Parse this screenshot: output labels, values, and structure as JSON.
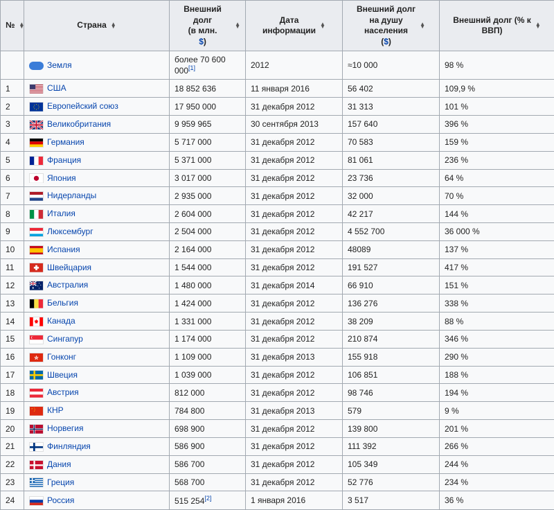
{
  "headers": {
    "num": "№",
    "country": "Страна",
    "debt_line1": "Внешний долг",
    "debt_line2": "(в млн.",
    "debt_line3": ")",
    "date_line1": "Дата",
    "date_line2": "информации",
    "percap_line1": "Внешний долг",
    "percap_line2": "на душу",
    "percap_line3": "населения",
    "percap_line4": "(",
    "percap_line5": ")",
    "gdp_line1": "Внешний долг (% к",
    "gdp_line2": "ВВП)",
    "dollar": "$"
  },
  "earth": {
    "name": "Земля",
    "debt_pre": "более 70 600 000",
    "ref": "[1]",
    "date": "2012",
    "percap": "≈10 000",
    "gdp": "98 %"
  },
  "rows": [
    {
      "n": "1",
      "country": "США",
      "flag": "us",
      "debt": "18 852 636",
      "date": "11 января 2016",
      "percap": "56 402",
      "gdp": "109,9 %"
    },
    {
      "n": "2",
      "country": "Европейский союз",
      "flag": "eu",
      "debt": "17 950 000",
      "date": "31 декабря 2012",
      "percap": "31 313",
      "gdp": "101 %"
    },
    {
      "n": "3",
      "country": "Великобритания",
      "flag": "gb",
      "debt": "9 959 965",
      "date": "30 сентября 2013",
      "percap": "157 640",
      "gdp": "396 %"
    },
    {
      "n": "4",
      "country": "Германия",
      "flag": "de",
      "debt": "5 717 000",
      "date": "31 декабря 2012",
      "percap": "70 583",
      "gdp": "159 %"
    },
    {
      "n": "5",
      "country": "Франция",
      "flag": "fr",
      "debt": "5 371 000",
      "date": "31 декабря 2012",
      "percap": "81 061",
      "gdp": "236 %"
    },
    {
      "n": "6",
      "country": "Япония",
      "flag": "jp",
      "debt": "3 017 000",
      "date": "31 декабря 2012",
      "percap": "23 736",
      "gdp": "64 %"
    },
    {
      "n": "7",
      "country": "Нидерланды",
      "flag": "nl",
      "debt": "2 935 000",
      "date": "31 декабря 2012",
      "percap": "32 000",
      "gdp": "70 %"
    },
    {
      "n": "8",
      "country": "Италия",
      "flag": "it",
      "debt": "2 604 000",
      "date": "31 декабря 2012",
      "percap": "42 217",
      "gdp": "144 %"
    },
    {
      "n": "9",
      "country": "Люксембург",
      "flag": "lu",
      "debt": "2 504 000",
      "date": "31 декабря 2012",
      "percap": "4 552 700",
      "gdp": "36 000 %"
    },
    {
      "n": "10",
      "country": "Испания",
      "flag": "es",
      "debt": "2 164 000",
      "date": "31 декабря 2012",
      "percap": "48089",
      "gdp": "137 %"
    },
    {
      "n": "11",
      "country": "Швейцария",
      "flag": "ch",
      "debt": "1 544 000",
      "date": "31 декабря 2012",
      "percap": "191 527",
      "gdp": "417 %"
    },
    {
      "n": "12",
      "country": "Австралия",
      "flag": "au",
      "debt": "1 480 000",
      "date": "31 декабря 2014",
      "percap": "66 910",
      "gdp": "151 %"
    },
    {
      "n": "13",
      "country": "Бельгия",
      "flag": "be",
      "debt": "1 424 000",
      "date": "31 декабря 2012",
      "percap": "136 276",
      "gdp": "338 %"
    },
    {
      "n": "14",
      "country": "Канада",
      "flag": "ca",
      "debt": "1 331 000",
      "date": "31 декабря 2012",
      "percap": "38 209",
      "gdp": "88 %"
    },
    {
      "n": "15",
      "country": "Сингапур",
      "flag": "sg",
      "debt": "1 174 000",
      "date": "31 декабря 2012",
      "percap": "210 874",
      "gdp": "346 %"
    },
    {
      "n": "16",
      "country": "Гонконг",
      "flag": "hk",
      "debt": "1 109 000",
      "date": "31 декабря 2013",
      "percap": "155 918",
      "gdp": "290 %"
    },
    {
      "n": "17",
      "country": "Швеция",
      "flag": "se",
      "debt": "1 039 000",
      "date": "31 декабря 2012",
      "percap": "106 851",
      "gdp": "188 %"
    },
    {
      "n": "18",
      "country": "Австрия",
      "flag": "at",
      "debt": "812 000",
      "date": "31 декабря 2012",
      "percap": "98 746",
      "gdp": "194 %"
    },
    {
      "n": "19",
      "country": "КНР",
      "flag": "cn",
      "debt": "784 800",
      "date": "31 декабря 2013",
      "percap": "579",
      "gdp": "9 %"
    },
    {
      "n": "20",
      "country": "Норвегия",
      "flag": "no",
      "debt": "698 900",
      "date": "31 декабря 2012",
      "percap": "139 800",
      "gdp": "201 %"
    },
    {
      "n": "21",
      "country": "Финляндия",
      "flag": "fi",
      "debt": "586 900",
      "date": "31 декабря 2012",
      "percap": "111 392",
      "gdp": "266 %"
    },
    {
      "n": "22",
      "country": "Дания",
      "flag": "dk",
      "debt": "586 700",
      "date": "31 декабря 2012",
      "percap": "105 349",
      "gdp": "244 %"
    },
    {
      "n": "23",
      "country": "Греция",
      "flag": "gr",
      "debt": "568 700",
      "date": "31 декабря 2012",
      "percap": "52 776",
      "gdp": "234 %"
    },
    {
      "n": "24",
      "country": "Россия",
      "flag": "ru",
      "debt": "515 254",
      "ref": "[2]",
      "date": "1 января 2016",
      "percap": "3 517",
      "gdp": "36 %"
    }
  ],
  "flagSVG": {
    "us": "<svg viewBox='0 0 21 14'><rect width='21' height='14' fill='#b22234'/><g fill='#fff'><rect y='1.08' width='21' height='1.08'/><rect y='3.23' width='21' height='1.08'/><rect y='5.38' width='21' height='1.08'/><rect y='7.54' width='21' height='1.08'/><rect y='9.69' width='21' height='1.08'/><rect y='11.85' width='21' height='1.08'/></g><rect width='9' height='7.5' fill='#3c3b6e'/></svg>",
    "eu": "<svg viewBox='0 0 21 14'><rect width='21' height='14' fill='#003399'/><g fill='#fc0'><circle cx='10.5' cy='3' r='0.6'/><circle cx='10.5' cy='11' r='0.6'/><circle cx='6.5' cy='7' r='0.6'/><circle cx='14.5' cy='7' r='0.6'/><circle cx='7.5' cy='4.2' r='0.6'/><circle cx='13.5' cy='4.2' r='0.6'/><circle cx='7.5' cy='9.8' r='0.6'/><circle cx='13.5' cy='9.8' r='0.6'/></g></svg>",
    "gb": "<svg viewBox='0 0 21 14'><rect width='21' height='14' fill='#012169'/><path d='M0 0l21 14M21 0L0 14' stroke='#fff' stroke-width='2.8'/><path d='M0 0l21 14M21 0L0 14' stroke='#c8102e' stroke-width='1.2'/><path d='M10.5 0v14M0 7h21' stroke='#fff' stroke-width='4'/><path d='M10.5 0v14M0 7h21' stroke='#c8102e' stroke-width='2.2'/></svg>",
    "de": "<svg viewBox='0 0 21 14'><rect width='21' height='4.67' fill='#000'/><rect y='4.67' width='21' height='4.67' fill='#d00'/><rect y='9.33' width='21' height='4.67' fill='#ffce00'/></svg>",
    "fr": "<svg viewBox='0 0 21 14'><rect width='7' height='14' fill='#002395'/><rect x='7' width='7' height='14' fill='#fff'/><rect x='14' width='7' height='14' fill='#ed2939'/></svg>",
    "jp": "<svg viewBox='0 0 21 14'><rect width='21' height='14' fill='#fff'/><circle cx='10.5' cy='7' r='4' fill='#bc002d'/></svg>",
    "nl": "<svg viewBox='0 0 21 14'><rect width='21' height='4.67' fill='#ae1c28'/><rect y='4.67' width='21' height='4.67' fill='#fff'/><rect y='9.33' width='21' height='4.67' fill='#21468b'/></svg>",
    "it": "<svg viewBox='0 0 21 14'><rect width='7' height='14' fill='#009246'/><rect x='7' width='7' height='14' fill='#fff'/><rect x='14' width='7' height='14' fill='#ce2b37'/></svg>",
    "lu": "<svg viewBox='0 0 21 14'><rect width='21' height='4.67' fill='#ed2939'/><rect y='4.67' width='21' height='4.67' fill='#fff'/><rect y='9.33' width='21' height='4.67' fill='#00a1de'/></svg>",
    "es": "<svg viewBox='0 0 21 14'><rect width='21' height='14' fill='#c60b1e'/><rect y='3.5' width='21' height='7' fill='#ffc400'/></svg>",
    "ch": "<svg viewBox='0 0 21 14'><rect width='21' height='14' fill='#d52b1e'/><rect x='9' y='3' width='3' height='8' fill='#fff'/><rect x='6.5' y='5.5' width='8' height='3' fill='#fff'/></svg>",
    "au": "<svg viewBox='0 0 21 14'><rect width='21' height='14' fill='#012169'/><rect width='10.5' height='7' fill='#012169'/><path d='M0 0l10.5 7M10.5 0L0 7' stroke='#fff' stroke-width='1.4'/><path d='M5.25 0v7M0 3.5h10.5' stroke='#fff' stroke-width='2'/><path d='M5.25 0v7M0 3.5h10.5' stroke='#c8102e' stroke-width='1'/><g fill='#fff'><circle cx='5.2' cy='10.5' r='1.2'/><circle cx='15' cy='3' r='0.6'/><circle cx='17.5' cy='6' r='0.6'/><circle cx='15' cy='11' r='0.6'/><circle cx='13' cy='7.5' r='0.6'/></g></svg>",
    "be": "<svg viewBox='0 0 21 14'><rect width='7' height='14' fill='#000'/><rect x='7' width='7' height='14' fill='#fae042'/><rect x='14' width='7' height='14' fill='#ed2939'/></svg>",
    "ca": "<svg viewBox='0 0 21 14'><rect width='21' height='14' fill='#f00'/><rect x='5.25' width='10.5' height='14' fill='#fff'/><path d='M10.5 3l1 2 2-0.5-1 2 1.5 1-2 0.5 0.3 2-1.8-1-1.8 1 0.3-2-2-0.5 1.5-1-1-2 2 0.5z' fill='#f00'/></svg>",
    "sg": "<svg viewBox='0 0 21 14'><rect width='21' height='7' fill='#ed2939'/><rect y='7' width='21' height='7' fill='#fff'/><circle cx='4.5' cy='3.5' r='2.2' fill='#fff'/><circle cx='5.3' cy='3.5' r='2.2' fill='#ed2939'/></svg>",
    "hk": "<svg viewBox='0 0 21 14'><rect width='21' height='14' fill='#de2910'/><g fill='#fff' transform='translate(10.5 7)'><path d='M0-3.5q1.5 1 0 3.5q-1.5-2.5 0-3.5' transform='rotate(0)'/><path d='M0-3.5q1.5 1 0 3.5q-1.5-2.5 0-3.5' transform='rotate(72)'/><path d='M0-3.5q1.5 1 0 3.5q-1.5-2.5 0-3.5' transform='rotate(144)'/><path d='M0-3.5q1.5 1 0 3.5q-1.5-2.5 0-3.5' transform='rotate(216)'/><path d='M0-3.5q1.5 1 0 3.5q-1.5-2.5 0-3.5' transform='rotate(288)'/></g></svg>",
    "se": "<svg viewBox='0 0 21 14'><rect width='21' height='14' fill='#006aa7'/><rect x='6' width='2.8' height='14' fill='#fecc00'/><rect y='5.6' width='21' height='2.8' fill='#fecc00'/></svg>",
    "at": "<svg viewBox='0 0 21 14'><rect width='21' height='4.67' fill='#ed2939'/><rect y='4.67' width='21' height='4.67' fill='#fff'/><rect y='9.33' width='21' height='4.67' fill='#ed2939'/></svg>",
    "cn": "<svg viewBox='0 0 21 14'><rect width='21' height='14' fill='#de2910'/><g fill='#ffde00'><polygon points='3.5,2 4.2,4 2.4,2.8 4.6,2.8 2.8,4'/><circle cx='7' cy='2' r='0.5'/><circle cx='8' cy='3.5' r='0.5'/><circle cx='8' cy='5.5' r='0.5'/><circle cx='7' cy='7' r='0.5'/></g></svg>",
    "no": "<svg viewBox='0 0 21 14'><rect width='21' height='14' fill='#ba0c2f'/><rect x='5.5' width='3' height='14' fill='#fff'/><rect y='5.5' width='21' height='3' fill='#fff'/><rect x='6.25' width='1.5' height='14' fill='#00205b'/><rect y='6.25' width='21' height='1.5' fill='#00205b'/></svg>",
    "fi": "<svg viewBox='0 0 21 14'><rect width='21' height='14' fill='#fff'/><rect x='5.5' width='3' height='14' fill='#003580'/><rect y='5.5' width='21' height='3' fill='#003580'/></svg>",
    "dk": "<svg viewBox='0 0 21 14'><rect width='21' height='14' fill='#c8102e'/><rect x='6' width='2.5' height='14' fill='#fff'/><rect y='5.75' width='21' height='2.5' fill='#fff'/></svg>",
    "gr": "<svg viewBox='0 0 21 14'><rect width='21' height='14' fill='#0d5eaf'/><g fill='#fff'><rect y='1.56' width='21' height='1.56'/><rect y='4.67' width='21' height='1.56'/><rect y='7.78' width='21' height='1.56'/><rect y='10.89' width='21' height='1.56'/></g><rect width='8' height='7.78' fill='#0d5eaf'/><rect x='3.2' width='1.6' height='7.78' fill='#fff'/><rect y='3.1' width='8' height='1.56' fill='#fff'/></svg>",
    "ru": "<svg viewBox='0 0 21 14'><rect width='21' height='4.67' fill='#fff'/><rect y='4.67' width='21' height='4.67' fill='#0039a6'/><rect y='9.33' width='21' height='4.67' fill='#d52b1e'/></svg>"
  }
}
